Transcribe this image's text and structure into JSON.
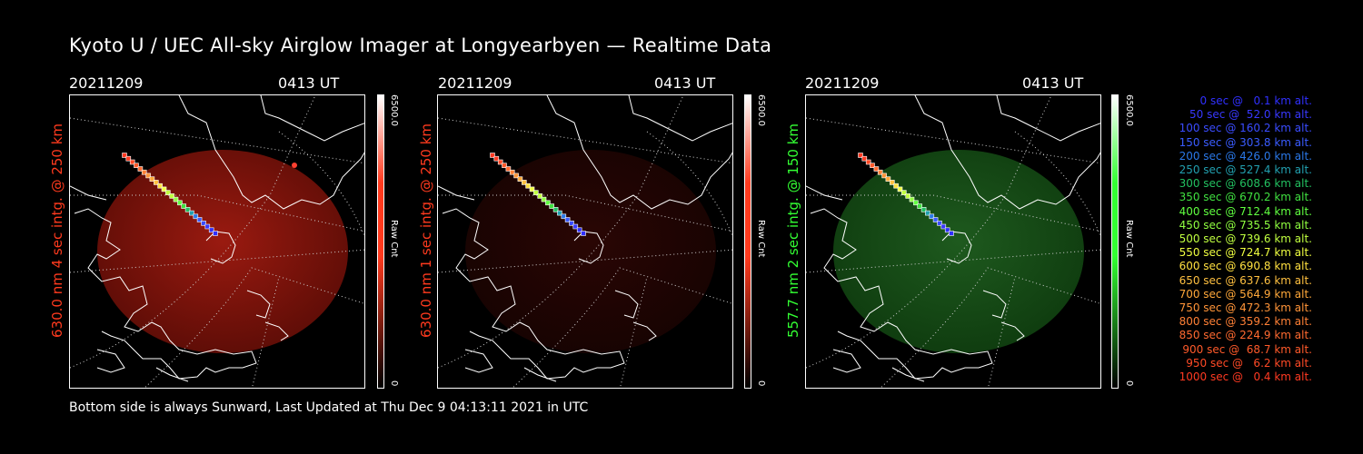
{
  "title": "Kyoto U / UEC All-sky Airglow Imager at Longyearbyen — Realtime Data",
  "colors": {
    "red_side": "#ff3a1e",
    "green_side": "#33ff33",
    "white": "#ffffff"
  },
  "panels": [
    {
      "date": "20211209",
      "time": "0413 UT",
      "side_label": "630.0 nm  4 sec intg. @ 250 km",
      "side_color": "#ff3a1e",
      "cbar_max": "6500.0",
      "cbar_unit": "Raw Cnt",
      "cbar_min": "0",
      "cbar_color": "#ff3a1e",
      "glow": "red-strong"
    },
    {
      "date": "20211209",
      "time": "0413 UT",
      "side_label": "630.0 nm  1 sec intg. @ 250 km",
      "side_color": "#ff3a1e",
      "cbar_max": "6500.0",
      "cbar_unit": "Raw Cnt",
      "cbar_min": "0",
      "cbar_color": "#ff3a1e",
      "glow": "red-faint"
    },
    {
      "date": "20211209",
      "time": "0413 UT",
      "side_label": "557.7 nm  2 sec intg. @ 150 km",
      "side_color": "#33ff33",
      "cbar_max": "6500.0",
      "cbar_unit": "Raw Cnt",
      "cbar_min": "0",
      "cbar_color": "#33ff33",
      "glow": "green"
    }
  ],
  "legend": [
    {
      "text": "0 sec @   0.1 km alt.",
      "color": "#3030ff"
    },
    {
      "text": "50 sec @  52.0 km alt.",
      "color": "#3838ff"
    },
    {
      "text": "100 sec @ 160.2 km alt.",
      "color": "#3a4cff"
    },
    {
      "text": "150 sec @ 303.8 km alt.",
      "color": "#3a5cff"
    },
    {
      "text": "200 sec @ 426.0 km alt.",
      "color": "#2a78e8"
    },
    {
      "text": "250 sec @ 527.4 km alt.",
      "color": "#22a0b0"
    },
    {
      "text": "300 sec @ 608.6 km alt.",
      "color": "#22c060"
    },
    {
      "text": "350 sec @ 670.2 km alt.",
      "color": "#40e040"
    },
    {
      "text": "400 sec @ 712.4 km alt.",
      "color": "#60ff40"
    },
    {
      "text": "450 sec @ 735.5 km alt.",
      "color": "#90ff40"
    },
    {
      "text": "500 sec @ 739.6 km alt.",
      "color": "#c0ff40"
    },
    {
      "text": "550 sec @ 724.7 km alt.",
      "color": "#f0ff40"
    },
    {
      "text": "600 sec @ 690.8 km alt.",
      "color": "#ffe040"
    },
    {
      "text": "650 sec @ 637.6 km alt.",
      "color": "#ffc040"
    },
    {
      "text": "700 sec @ 564.9 km alt.",
      "color": "#ffa83a"
    },
    {
      "text": "750 sec @ 472.3 km alt.",
      "color": "#ff9438"
    },
    {
      "text": "800 sec @ 359.2 km alt.",
      "color": "#ff8036"
    },
    {
      "text": "850 sec @ 224.9 km alt.",
      "color": "#ff6a30"
    },
    {
      "text": "900 sec @  68.7 km alt.",
      "color": "#ff5a2a"
    },
    {
      "text": "950 sec @   6.2 km alt.",
      "color": "#ff4a26"
    },
    {
      "text": "1000 sec @   0.4 km alt.",
      "color": "#ff3a22"
    }
  ],
  "footer": "Bottom side is always Sunward, Last Updated at Thu Dec  9 04:13:11 2021 in UTC"
}
